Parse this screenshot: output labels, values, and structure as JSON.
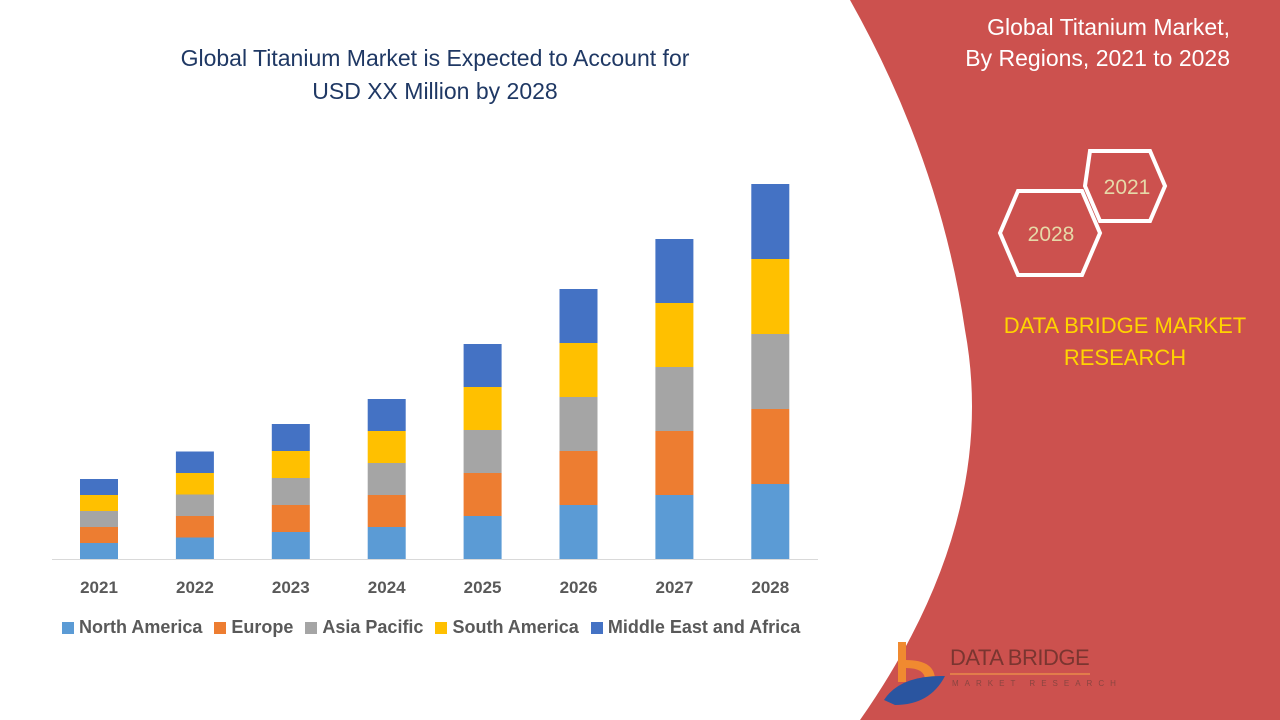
{
  "title": "Global Titanium Market is Expected to Account for USD XX Million by 2028",
  "title_lines": [
    "Global Titanium Market is Expected to Account for",
    "USD XX Million by 2028"
  ],
  "side_panel": {
    "title_lines": [
      "Global Titanium Market,",
      "By Regions, 2021 to 2028"
    ],
    "hex_labels": [
      "2021",
      "2028"
    ],
    "brand_lines": [
      "DATA BRIDGE MARKET",
      "RESEARCH"
    ],
    "logo_text": "DATA BRIDGE",
    "logo_subtext": "MARKET RESEARCH",
    "panel_color": "#cc514e",
    "brand_color": "#ffd400"
  },
  "chart_data": {
    "type": "bar",
    "stacked": true,
    "title": "Global Titanium Market is Expected to Account for USD XX Million by 2028",
    "xlabel": "",
    "ylabel": "",
    "y_axis_shown": false,
    "grid": false,
    "legend_position": "bottom",
    "categories": [
      "2021",
      "2022",
      "2023",
      "2024",
      "2025",
      "2026",
      "2027",
      "2028"
    ],
    "series": [
      {
        "name": "North America",
        "color": "#5b9bd5",
        "values": [
          16,
          21.5,
          27,
          32,
          43,
          54,
          64,
          75
        ]
      },
      {
        "name": "Europe",
        "color": "#ed7d31",
        "values": [
          16,
          21.5,
          27,
          32,
          43,
          54,
          64,
          75
        ]
      },
      {
        "name": "Asia Pacific",
        "color": "#a5a5a5",
        "values": [
          16,
          21.5,
          27,
          32,
          43,
          54,
          64,
          75
        ]
      },
      {
        "name": "South America",
        "color": "#ffc000",
        "values": [
          16,
          21.5,
          27,
          32,
          43,
          54,
          64,
          75
        ]
      },
      {
        "name": "Middle East and Africa",
        "color": "#4472c4",
        "values": [
          16,
          21.5,
          27,
          32,
          43,
          54,
          64,
          75
        ]
      }
    ]
  }
}
